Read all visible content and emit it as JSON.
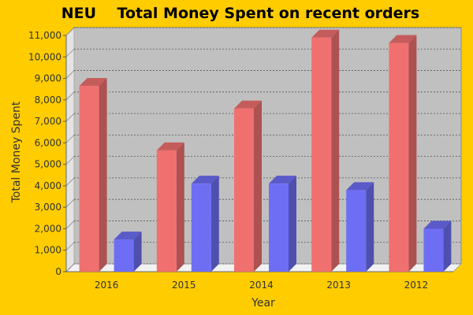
{
  "chart_data": {
    "type": "bar",
    "title": "NEU    Total Money Spent on recent orders",
    "xlabel": "Year",
    "ylabel": "Total Money Spent",
    "categories": [
      "2016",
      "2015",
      "2014",
      "2013",
      "2012"
    ],
    "series": [
      {
        "values": [
          8650,
          5650,
          7600,
          10900,
          10650
        ],
        "color": "#F07070"
      },
      {
        "values": [
          1500,
          4100,
          4100,
          3800,
          2000
        ],
        "color": "#6E6EF5"
      }
    ],
    "ylim": [
      0,
      11000
    ],
    "yticks": [
      0,
      1000,
      2000,
      3000,
      4000,
      5000,
      6000,
      7000,
      8000,
      9000,
      10000,
      11000
    ],
    "ytick_labels": [
      "0",
      "1,000",
      "2,000",
      "3,000",
      "4,000",
      "5,000",
      "6,000",
      "7,000",
      "8,000",
      "9,000",
      "10,000",
      "11,000"
    ],
    "grid": true,
    "background": "#FFCC00",
    "plot_background": "#C0C0C0"
  }
}
